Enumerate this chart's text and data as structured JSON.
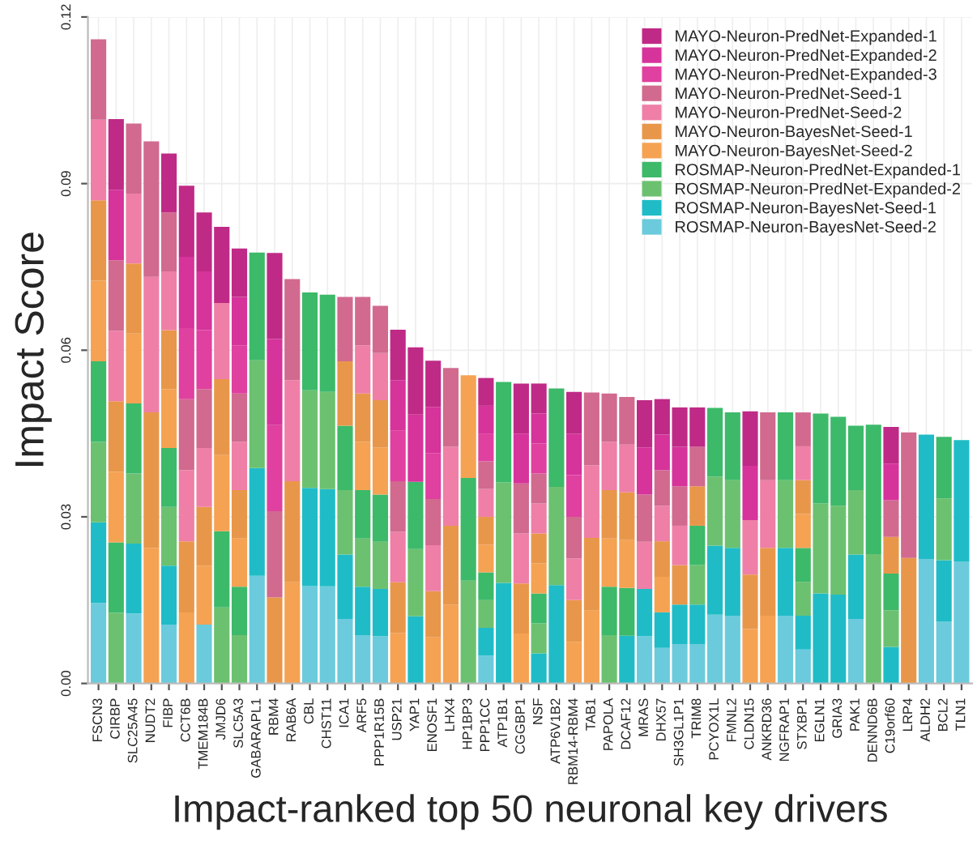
{
  "chart_data": {
    "type": "bar",
    "stacked": true,
    "xlabel": "Impact-ranked top 50 neuronal key drivers",
    "ylabel": "Impact Score",
    "categories": [
      "FSCN3",
      "CIRBP",
      "SLC25A45",
      "NUDT2",
      "FIBP",
      "CCT6B",
      "TMEM184B",
      "JMJD6",
      "SLC5A3",
      "GABARAPL1",
      "RBM4",
      "RAB6A",
      "CBL",
      "CHST11",
      "ICA1",
      "ARF5",
      "PPP1R15B",
      "USP21",
      "YAP1",
      "ENOSF1",
      "LHX4",
      "HP1BP3",
      "PPP1CC",
      "ATP1B1",
      "CGGBP1",
      "NSF",
      "ATP6V1B2",
      "RBM14-RBM4",
      "TAB1",
      "PAPOLA",
      "DCAF12",
      "MRAS",
      "DHX57",
      "SH3GL1P1",
      "TRIM8",
      "PCYOX1L",
      "FMNL2",
      "CLDN15",
      "ANKRD36",
      "NGFRAP1",
      "STXBP1",
      "EGLN1",
      "GRIA3",
      "PAK1",
      "DENND6B",
      "C19orf60",
      "LRP4",
      "ALDH2",
      "BCL2",
      "TLN1"
    ],
    "ylim": [
      0,
      0.12
    ],
    "yticks": [
      {
        "value": 0,
        "label": "0.00"
      },
      {
        "value": 0.03,
        "label": "0.03"
      },
      {
        "value": 0.06,
        "label": "0.06"
      },
      {
        "value": 0.09,
        "label": "0.09"
      },
      {
        "value": 0.12,
        "label": "0.12"
      }
    ],
    "grid": true,
    "legend": "top right",
    "series": [
      {
        "name": "ROSMAP-Neuron-BayesNet-Seed-2",
        "color": "#6bcbdc",
        "values": [
          0.0145,
          null,
          0.0126,
          null,
          0.0106,
          null,
          0.0106,
          null,
          null,
          0.0194,
          null,
          null,
          0.0176,
          0.0175,
          0.0116,
          0.0087,
          0.0085,
          null,
          null,
          null,
          null,
          null,
          0.005,
          null,
          null,
          null,
          null,
          null,
          null,
          null,
          null,
          0.0085,
          0.0064,
          0.0071,
          0.0071,
          0.0124,
          0.0122,
          null,
          null,
          0.0122,
          0.0061,
          null,
          null,
          0.0116,
          null,
          null,
          null,
          0.0224,
          0.0111,
          0.0219
        ]
      },
      {
        "name": "ROSMAP-Neuron-BayesNet-Seed-1",
        "color": "#1fbcc7",
        "values": [
          0.0145,
          null,
          0.0126,
          null,
          0.0106,
          null,
          null,
          null,
          null,
          0.0194,
          null,
          null,
          0.0176,
          0.0175,
          0.0116,
          0.0087,
          0.0085,
          null,
          0.0121,
          null,
          null,
          null,
          0.005,
          0.0181,
          null,
          0.0054,
          0.0177,
          null,
          null,
          null,
          0.0086,
          0.0085,
          0.0064,
          0.0071,
          0.0071,
          0.0124,
          0.0122,
          null,
          null,
          0.0122,
          0.0061,
          0.0162,
          0.016,
          0.0116,
          null,
          0.0066,
          null,
          0.0224,
          0.0111,
          0.0219
        ]
      },
      {
        "name": "ROSMAP-Neuron-PredNet-Expanded-2",
        "color": "#6cc170",
        "values": [
          0.0145,
          0.0127,
          0.0126,
          null,
          0.0106,
          null,
          null,
          0.0137,
          0.0087,
          0.0194,
          null,
          null,
          0.0176,
          0.0175,
          0.0116,
          0.0087,
          0.0085,
          null,
          0.0121,
          null,
          null,
          0.0185,
          0.005,
          0.0181,
          null,
          0.0054,
          0.0177,
          null,
          null,
          0.0087,
          null,
          null,
          null,
          null,
          0.0071,
          0.0124,
          0.0122,
          null,
          null,
          0.0122,
          0.0061,
          0.0162,
          0.016,
          0.0116,
          0.0233,
          0.0066,
          null,
          null,
          0.0111,
          null
        ]
      },
      {
        "name": "ROSMAP-Neuron-PredNet-Expanded-1",
        "color": "#3db96a",
        "values": [
          0.0145,
          0.0127,
          0.0126,
          null,
          0.0106,
          null,
          null,
          0.0137,
          0.0087,
          0.0194,
          null,
          null,
          0.0176,
          0.0175,
          0.0116,
          0.0087,
          0.0085,
          null,
          0.0121,
          null,
          null,
          0.0185,
          0.005,
          0.0181,
          null,
          0.0054,
          0.0177,
          null,
          null,
          0.0087,
          0.0086,
          null,
          null,
          null,
          0.0071,
          0.0124,
          0.0122,
          null,
          null,
          0.0122,
          0.0061,
          0.0162,
          0.016,
          0.0116,
          0.0233,
          0.0066,
          null,
          null,
          0.0111,
          null
        ]
      },
      {
        "name": "MAYO-Neuron-BayesNet-Seed-2",
        "color": "#f5a253",
        "values": [
          0.0145,
          0.0127,
          0.0126,
          0.0244,
          0.0106,
          0.0128,
          0.0106,
          0.0137,
          0.0087,
          null,
          null,
          0.0182,
          null,
          null,
          null,
          0.0087,
          0.0085,
          0.0091,
          null,
          0.0083,
          0.0142,
          0.0185,
          0.005,
          null,
          0.009,
          0.0054,
          null,
          0.0075,
          0.0131,
          0.0087,
          0.0086,
          null,
          0.0064,
          null,
          null,
          null,
          null,
          0.0098,
          0.0122,
          null,
          0.0061,
          null,
          null,
          null,
          null,
          null,
          null,
          null,
          null,
          null
        ]
      },
      {
        "name": "MAYO-Neuron-BayesNet-Seed-1",
        "color": "#e8974a",
        "values": [
          0.0145,
          0.0127,
          0.0126,
          0.0244,
          0.0106,
          0.0128,
          0.0106,
          0.0137,
          0.0087,
          null,
          0.0155,
          0.0182,
          null,
          null,
          0.0116,
          0.0087,
          0.0085,
          0.0091,
          null,
          0.0083,
          0.0142,
          null,
          0.005,
          null,
          0.009,
          0.0054,
          null,
          0.0075,
          0.0131,
          0.0087,
          0.0086,
          null,
          0.0064,
          0.0071,
          0.0071,
          null,
          null,
          0.0098,
          0.0122,
          null,
          0.0061,
          null,
          null,
          null,
          null,
          0.0066,
          0.0226,
          null,
          null,
          null
        ]
      },
      {
        "name": "MAYO-Neuron-PredNet-Seed-2",
        "color": "#ef7fa6",
        "values": [
          0.0145,
          0.0127,
          0.0126,
          0.0244,
          0.0106,
          0.0128,
          0.0106,
          0.0137,
          0.0087,
          null,
          null,
          0.0182,
          null,
          null,
          null,
          0.0087,
          0.0085,
          0.0091,
          null,
          0.0083,
          0.0142,
          null,
          0.005,
          null,
          0.009,
          0.0054,
          null,
          0.0075,
          0.0131,
          0.0087,
          0.0086,
          0.0085,
          0.0064,
          0.0071,
          null,
          null,
          null,
          0.0098,
          0.0122,
          null,
          0.0061,
          null,
          null,
          null,
          null,
          null,
          null,
          null,
          null,
          null
        ]
      },
      {
        "name": "MAYO-Neuron-PredNet-Seed-1",
        "color": "#d16a8e",
        "values": [
          0.0145,
          0.0127,
          0.0126,
          0.0244,
          0.0106,
          0.0128,
          0.0106,
          null,
          0.0087,
          null,
          0.0155,
          0.0182,
          null,
          null,
          0.0116,
          0.0087,
          0.0085,
          0.0091,
          null,
          0.0083,
          0.0142,
          null,
          0.005,
          null,
          0.009,
          0.0054,
          null,
          0.0075,
          0.0131,
          0.0087,
          0.0086,
          0.0085,
          0.0064,
          0.0071,
          0.0071,
          null,
          null,
          null,
          0.0122,
          null,
          0.0061,
          null,
          null,
          null,
          null,
          0.0066,
          0.0226,
          null,
          null,
          null
        ]
      },
      {
        "name": "MAYO-Neuron-PredNet-Expanded-3",
        "color": "#e0409f",
        "values": [
          null,
          null,
          null,
          null,
          null,
          0.0128,
          0.0106,
          null,
          0.0087,
          null,
          0.0155,
          null,
          null,
          null,
          null,
          null,
          null,
          0.0091,
          null,
          0.0083,
          null,
          null,
          0.005,
          null,
          null,
          0.0054,
          null,
          0.0075,
          null,
          null,
          null,
          null,
          null,
          null,
          null,
          null,
          null,
          null,
          null,
          null,
          null,
          null,
          null,
          null,
          null,
          null,
          null,
          null,
          null,
          null
        ]
      },
      {
        "name": "MAYO-Neuron-PredNet-Expanded-2",
        "color": "#d6339b",
        "values": [
          null,
          0.0127,
          null,
          null,
          null,
          0.0128,
          0.0106,
          null,
          0.0087,
          null,
          0.0155,
          null,
          null,
          null,
          null,
          null,
          null,
          0.0091,
          0.0121,
          0.0083,
          null,
          null,
          0.005,
          null,
          0.009,
          0.0054,
          null,
          0.0075,
          null,
          null,
          null,
          0.0085,
          0.0064,
          0.0071,
          null,
          null,
          null,
          0.0098,
          null,
          null,
          null,
          null,
          null,
          null,
          null,
          0.0066,
          null,
          null,
          null,
          null
        ]
      },
      {
        "name": "MAYO-Neuron-PredNet-Expanded-1",
        "color": "#bf2a86",
        "values": [
          null,
          0.0127,
          null,
          null,
          0.0106,
          0.0128,
          0.0106,
          0.0137,
          0.0087,
          null,
          0.0155,
          null,
          null,
          null,
          null,
          null,
          null,
          0.0091,
          0.0121,
          0.0083,
          null,
          null,
          0.005,
          null,
          0.009,
          0.0054,
          null,
          0.0075,
          null,
          null,
          null,
          0.0085,
          0.0064,
          0.0071,
          0.0071,
          null,
          null,
          0.0098,
          null,
          null,
          null,
          null,
          null,
          null,
          null,
          0.0066,
          null,
          null,
          null,
          null
        ]
      }
    ]
  }
}
